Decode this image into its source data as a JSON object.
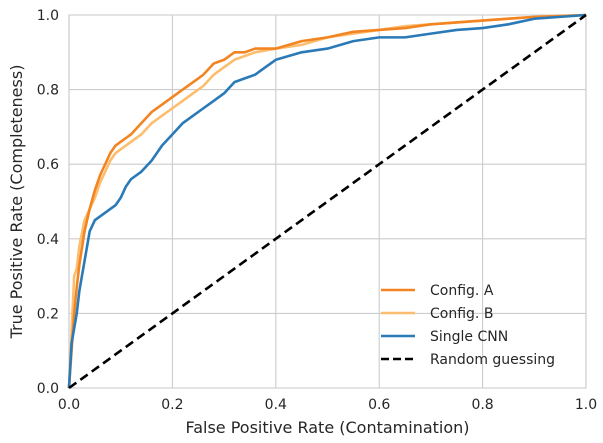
{
  "chart_data": {
    "type": "line",
    "title": "",
    "xlabel": "False Positive Rate (Contamination)",
    "ylabel": "True Positive Rate (Completeness)",
    "xlim": [
      0.0,
      1.0
    ],
    "ylim": [
      0.0,
      1.0
    ],
    "xticks": [
      "0.0",
      "0.2",
      "0.4",
      "0.6",
      "0.8",
      "1.0"
    ],
    "yticks": [
      "0.0",
      "0.2",
      "0.4",
      "0.6",
      "0.8",
      "1.0"
    ],
    "grid": true,
    "legend_position": "lower-right",
    "series": [
      {
        "name": "Config. A",
        "color": "#f28522",
        "dash": "solid",
        "x": [
          0.0,
          0.005,
          0.01,
          0.015,
          0.02,
          0.03,
          0.04,
          0.05,
          0.06,
          0.07,
          0.08,
          0.09,
          0.1,
          0.12,
          0.14,
          0.16,
          0.18,
          0.2,
          0.22,
          0.24,
          0.26,
          0.28,
          0.3,
          0.32,
          0.34,
          0.36,
          0.4,
          0.45,
          0.5,
          0.55,
          0.6,
          0.65,
          0.7,
          0.75,
          0.8,
          0.85,
          0.9,
          1.0
        ],
        "y": [
          0.0,
          0.1,
          0.2,
          0.27,
          0.33,
          0.42,
          0.48,
          0.53,
          0.57,
          0.6,
          0.63,
          0.65,
          0.66,
          0.68,
          0.71,
          0.74,
          0.76,
          0.78,
          0.8,
          0.82,
          0.84,
          0.87,
          0.88,
          0.9,
          0.9,
          0.91,
          0.91,
          0.93,
          0.94,
          0.955,
          0.96,
          0.965,
          0.975,
          0.98,
          0.985,
          0.99,
          0.995,
          1.0
        ]
      },
      {
        "name": "Config. B",
        "color": "#fdbd6e",
        "dash": "solid",
        "x": [
          0.0,
          0.005,
          0.01,
          0.015,
          0.02,
          0.03,
          0.04,
          0.05,
          0.06,
          0.07,
          0.08,
          0.09,
          0.1,
          0.12,
          0.14,
          0.16,
          0.18,
          0.2,
          0.22,
          0.24,
          0.26,
          0.28,
          0.3,
          0.32,
          0.34,
          0.36,
          0.4,
          0.45,
          0.5,
          0.55,
          0.6,
          0.65,
          0.7,
          0.75,
          0.8,
          0.85,
          0.9,
          1.0
        ],
        "y": [
          0.0,
          0.15,
          0.3,
          0.32,
          0.38,
          0.45,
          0.48,
          0.51,
          0.55,
          0.58,
          0.61,
          0.63,
          0.64,
          0.66,
          0.68,
          0.71,
          0.73,
          0.75,
          0.77,
          0.79,
          0.81,
          0.84,
          0.86,
          0.88,
          0.89,
          0.9,
          0.91,
          0.92,
          0.94,
          0.95,
          0.96,
          0.97,
          0.975,
          0.98,
          0.985,
          0.99,
          0.995,
          1.0
        ]
      },
      {
        "name": "Single CNN",
        "color": "#2a7ab8",
        "dash": "solid",
        "x": [
          0.0,
          0.005,
          0.01,
          0.015,
          0.02,
          0.03,
          0.04,
          0.05,
          0.06,
          0.07,
          0.08,
          0.09,
          0.1,
          0.11,
          0.12,
          0.14,
          0.16,
          0.18,
          0.2,
          0.22,
          0.24,
          0.26,
          0.28,
          0.3,
          0.32,
          0.34,
          0.36,
          0.38,
          0.4,
          0.45,
          0.5,
          0.55,
          0.6,
          0.65,
          0.7,
          0.75,
          0.8,
          0.85,
          0.9,
          0.95,
          1.0
        ],
        "y": [
          0.0,
          0.12,
          0.16,
          0.2,
          0.26,
          0.34,
          0.42,
          0.45,
          0.46,
          0.47,
          0.48,
          0.49,
          0.51,
          0.54,
          0.56,
          0.58,
          0.61,
          0.65,
          0.68,
          0.71,
          0.73,
          0.75,
          0.77,
          0.79,
          0.82,
          0.83,
          0.84,
          0.86,
          0.88,
          0.9,
          0.91,
          0.93,
          0.94,
          0.94,
          0.95,
          0.96,
          0.965,
          0.975,
          0.99,
          0.995,
          1.0
        ]
      },
      {
        "name": "Random guessing",
        "color": "#000000",
        "dash": "dashed",
        "x": [
          0.0,
          1.0
        ],
        "y": [
          0.0,
          1.0
        ]
      }
    ]
  }
}
